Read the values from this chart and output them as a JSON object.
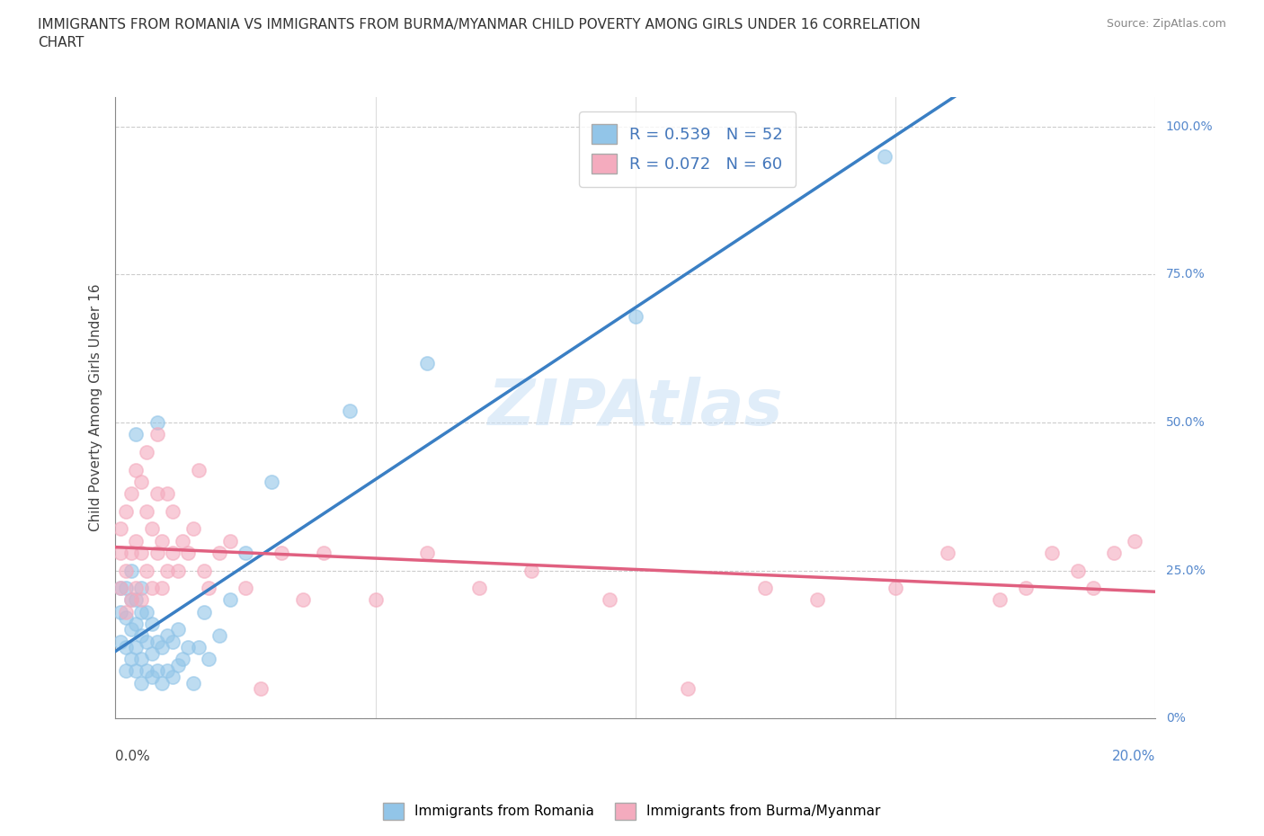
{
  "title_line1": "IMMIGRANTS FROM ROMANIA VS IMMIGRANTS FROM BURMA/MYANMAR CHILD POVERTY AMONG GIRLS UNDER 16 CORRELATION",
  "title_line2": "CHART",
  "source": "Source: ZipAtlas.com",
  "ylabel": "Child Poverty Among Girls Under 16",
  "romania_color": "#92C5E8",
  "burma_color": "#F4ABBE",
  "romania_line_color": "#3A7FC4",
  "burma_line_color": "#E06080",
  "romania_R": 0.539,
  "romania_N": 52,
  "burma_R": 0.072,
  "burma_N": 60,
  "watermark": "ZIPAtlas",
  "background_color": "#ffffff",
  "xlim": [
    0,
    0.2
  ],
  "ylim": [
    0,
    1.05
  ],
  "ytick_vals": [
    0,
    0.25,
    0.5,
    0.75,
    1.0
  ],
  "ytick_labels": [
    "0%",
    "25.0%",
    "50.0%",
    "75.0%",
    "100.0%"
  ],
  "xtick_vals": [
    0,
    0.05,
    0.1,
    0.15,
    0.2
  ],
  "romania_scatter_x": [
    0.001,
    0.001,
    0.001,
    0.002,
    0.002,
    0.002,
    0.002,
    0.003,
    0.003,
    0.003,
    0.003,
    0.004,
    0.004,
    0.004,
    0.004,
    0.004,
    0.005,
    0.005,
    0.005,
    0.005,
    0.005,
    0.006,
    0.006,
    0.006,
    0.007,
    0.007,
    0.007,
    0.008,
    0.008,
    0.008,
    0.009,
    0.009,
    0.01,
    0.01,
    0.011,
    0.011,
    0.012,
    0.012,
    0.013,
    0.014,
    0.015,
    0.016,
    0.017,
    0.018,
    0.02,
    0.022,
    0.025,
    0.03,
    0.045,
    0.06,
    0.1,
    0.148
  ],
  "romania_scatter_y": [
    0.13,
    0.18,
    0.22,
    0.08,
    0.12,
    0.17,
    0.22,
    0.1,
    0.15,
    0.2,
    0.25,
    0.08,
    0.12,
    0.16,
    0.2,
    0.48,
    0.06,
    0.1,
    0.14,
    0.18,
    0.22,
    0.08,
    0.13,
    0.18,
    0.07,
    0.11,
    0.16,
    0.08,
    0.13,
    0.5,
    0.06,
    0.12,
    0.08,
    0.14,
    0.07,
    0.13,
    0.09,
    0.15,
    0.1,
    0.12,
    0.06,
    0.12,
    0.18,
    0.1,
    0.14,
    0.2,
    0.28,
    0.4,
    0.52,
    0.6,
    0.68,
    0.95
  ],
  "burma_scatter_x": [
    0.001,
    0.001,
    0.001,
    0.002,
    0.002,
    0.002,
    0.003,
    0.003,
    0.003,
    0.004,
    0.004,
    0.004,
    0.005,
    0.005,
    0.005,
    0.006,
    0.006,
    0.006,
    0.007,
    0.007,
    0.008,
    0.008,
    0.008,
    0.009,
    0.009,
    0.01,
    0.01,
    0.011,
    0.011,
    0.012,
    0.013,
    0.014,
    0.015,
    0.016,
    0.017,
    0.018,
    0.02,
    0.022,
    0.025,
    0.028,
    0.032,
    0.036,
    0.04,
    0.05,
    0.06,
    0.07,
    0.08,
    0.095,
    0.11,
    0.125,
    0.135,
    0.15,
    0.16,
    0.17,
    0.175,
    0.18,
    0.185,
    0.188,
    0.192,
    0.196
  ],
  "burma_scatter_y": [
    0.22,
    0.28,
    0.32,
    0.18,
    0.25,
    0.35,
    0.2,
    0.28,
    0.38,
    0.22,
    0.3,
    0.42,
    0.2,
    0.28,
    0.4,
    0.25,
    0.35,
    0.45,
    0.22,
    0.32,
    0.28,
    0.38,
    0.48,
    0.22,
    0.3,
    0.25,
    0.38,
    0.28,
    0.35,
    0.25,
    0.3,
    0.28,
    0.32,
    0.42,
    0.25,
    0.22,
    0.28,
    0.3,
    0.22,
    0.05,
    0.28,
    0.2,
    0.28,
    0.2,
    0.28,
    0.22,
    0.25,
    0.2,
    0.05,
    0.22,
    0.2,
    0.22,
    0.28,
    0.2,
    0.22,
    0.28,
    0.25,
    0.22,
    0.28,
    0.3
  ]
}
